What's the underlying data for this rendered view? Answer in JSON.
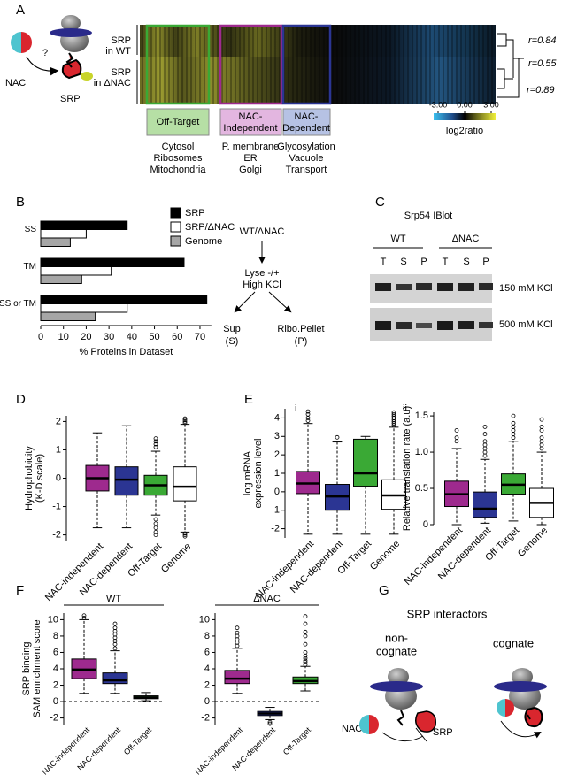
{
  "panels": {
    "A": {
      "label": "A",
      "nac": "NAC",
      "srp": "SRP",
      "question": "?",
      "rows": [
        [
          "SRP",
          "in WT"
        ],
        [
          "SRP",
          "in ΔNAC"
        ]
      ],
      "correlations": [
        "r=0.84",
        "r=0.55",
        "r=0.89"
      ],
      "groups": [
        {
          "title": [
            "Off-Target"
          ],
          "items": [
            "Cytosol",
            "Ribosomes",
            "Mitochondria"
          ]
        },
        {
          "title": [
            "NAC-",
            "Independent"
          ],
          "items": [
            "P. membrane",
            "ER",
            "Golgi"
          ]
        },
        {
          "title": [
            "NAC-",
            "Dependent"
          ],
          "items": [
            "Glycosylation",
            "Vacuole",
            "Transport"
          ]
        }
      ],
      "colorbar": {
        "lim": [
          -3.5,
          3.5
        ],
        "ticks": [
          {
            "value": -3,
            "label": "-3.00"
          },
          {
            "value": 0,
            "label": "0.00"
          },
          {
            "value": 3,
            "label": "3.00"
          }
        ],
        "label": "log2ratio"
      }
    },
    "B": {
      "label": "B"
    },
    "C": {
      "label": "C",
      "start": "WT/ΔNAC",
      "step": [
        "Lyse -/+",
        "High KCl"
      ],
      "sup": [
        "Sup",
        "(S)"
      ],
      "pellet": [
        "Ribo.Pellet",
        "(P)"
      ],
      "blot_title": "Srp54 IBlot",
      "strains": [
        "WT",
        "ΔNAC"
      ],
      "lanes": [
        "T",
        "S",
        "P",
        "T",
        "S",
        "P"
      ],
      "conditions": [
        "150 mM KCl",
        "500 mM KCl"
      ]
    },
    "D": {
      "label": "D"
    },
    "E": {
      "label": "E",
      "sub": [
        "i",
        "ii"
      ]
    },
    "F": {
      "label": "F"
    },
    "G": {
      "label": "G",
      "title": "SRP interactors",
      "left": [
        "non-",
        "cognate"
      ],
      "right": "cognate",
      "nac": "NAC",
      "srp": "SRP"
    }
  },
  "chart_data": [
    {
      "type": "hbar",
      "categories": [
        "SS",
        "TM",
        "SS or TM"
      ],
      "series": [
        {
          "name": "SRP",
          "color": "#000000",
          "values": [
            38,
            63,
            73
          ]
        },
        {
          "name": "SRP/ΔNAC",
          "color": "#ffffff",
          "values": [
            20,
            31,
            38
          ]
        },
        {
          "name": "Genome",
          "color": "#a6a6a6",
          "values": [
            13,
            18,
            24
          ]
        }
      ],
      "xlim": [
        0,
        75
      ],
      "xticks": [
        0,
        10,
        20,
        30,
        40,
        50,
        60,
        70
      ],
      "xlabel": "% Proteins in Dataset",
      "legend": "upper right"
    },
    {
      "type": "box",
      "categories": [
        "NAC-independent",
        "NAC-dependent",
        "Off-Target",
        "Genome"
      ],
      "colors": [
        "#9e2a8e",
        "#2b3593",
        "#3aa935",
        "#ffffff"
      ],
      "boxes": [
        {
          "whisker_low": -1.75,
          "q1": -0.45,
          "median": 0,
          "q3": 0.45,
          "whisker_high": 1.6,
          "outliers": []
        },
        {
          "whisker_low": -1.75,
          "q1": -0.6,
          "median": -0.05,
          "q3": 0.4,
          "whisker_high": 1.85,
          "outliers": []
        },
        {
          "whisker_low": -1.3,
          "q1": -0.6,
          "median": -0.25,
          "q3": 0.1,
          "whisker_high": 0.95,
          "outliers": [
            1.1,
            1.2,
            1.3,
            1.4,
            -1.45,
            -1.6,
            -1.75,
            -1.9,
            -2.0
          ]
        },
        {
          "whisker_low": -1.9,
          "q1": -0.8,
          "median": -0.3,
          "q3": 0.4,
          "whisker_high": 1.9,
          "outliers": [
            1.95,
            2.0,
            2.05,
            2.1,
            -1.95,
            -2.0,
            -2.05
          ]
        }
      ],
      "ylim": [
        -2.2,
        2.2
      ],
      "yticks": [
        -2,
        -1,
        0,
        1,
        2
      ],
      "ylabel": [
        "Hydrophobicity",
        "(K-D scale)"
      ]
    },
    {
      "type": "box",
      "categories": [
        "NAC-independent",
        "NAC-dependent",
        "Off-Target",
        "Genome"
      ],
      "colors": [
        "#9e2a8e",
        "#2b3593",
        "#3aa935",
        "#ffffff"
      ],
      "boxes": [
        {
          "whisker_low": -2.3,
          "q1": -0.1,
          "median": 0.45,
          "q3": 1.1,
          "whisker_high": 3.7,
          "outliers": [
            3.85,
            4.0,
            4.2,
            4.35
          ]
        },
        {
          "whisker_low": -2.3,
          "q1": -1.0,
          "median": -0.25,
          "q3": 0.4,
          "whisker_high": 2.7,
          "outliers": [
            2.95
          ]
        },
        {
          "whisker_low": -2.3,
          "q1": 0.3,
          "median": 1.0,
          "q3": 2.85,
          "whisker_high": 3.0,
          "outliers": []
        },
        {
          "whisker_low": -2.3,
          "q1": -0.95,
          "median": -0.2,
          "q3": 0.65,
          "whisker_high": 3.5,
          "outliers": [
            3.6,
            3.7,
            3.8,
            3.9,
            4.0,
            4.1,
            4.2,
            4.3
          ]
        }
      ],
      "ylim": [
        -2.5,
        4.5
      ],
      "yticks": [
        -2,
        -1,
        0,
        1,
        2,
        3,
        4
      ],
      "ylabel": [
        "log mRNA",
        "expression level"
      ]
    },
    {
      "type": "box",
      "categories": [
        "NAC-independent",
        "NAC-dependent",
        "Off-Target",
        "Genome"
      ],
      "colors": [
        "#9e2a8e",
        "#2b3593",
        "#3aa935",
        "#ffffff"
      ],
      "boxes": [
        {
          "whisker_low": 0,
          "q1": 0.25,
          "median": 0.42,
          "q3": 0.6,
          "whisker_high": 1.05,
          "outliers": [
            1.15,
            1.2,
            1.3
          ]
        },
        {
          "whisker_low": 0.02,
          "q1": 0.1,
          "median": 0.22,
          "q3": 0.45,
          "whisker_high": 0.9,
          "outliers": [
            0.95,
            1.0,
            1.05,
            1.1,
            1.15,
            1.25,
            1.35
          ]
        },
        {
          "whisker_low": 0.05,
          "q1": 0.42,
          "median": 0.55,
          "q3": 0.7,
          "whisker_high": 1.15,
          "outliers": [
            1.2,
            1.25,
            1.3,
            1.35,
            1.4,
            1.5
          ]
        },
        {
          "whisker_low": 0,
          "q1": 0.1,
          "median": 0.3,
          "q3": 0.5,
          "whisker_high": 1.0,
          "outliers": [
            1.05,
            1.1,
            1.15,
            1.2,
            1.3,
            1.35,
            1.45
          ]
        }
      ],
      "ylim": [
        0,
        1.55
      ],
      "yticks": [
        0,
        0.5,
        {
          "value": 1,
          "label": "1.0"
        },
        1.5
      ],
      "ylabel": [
        "Relative translation rate (a.u)"
      ]
    },
    {
      "type": "box",
      "title": "WT",
      "categories": [
        "NAC-independent",
        "NAC-dependent",
        "Off-Target"
      ],
      "colors": [
        "#9e2a8e",
        "#2b3593",
        "#3aa935"
      ],
      "boxes": [
        {
          "whisker_low": 1,
          "q1": 2.8,
          "median": 3.9,
          "q3": 5.2,
          "whisker_high": 10,
          "outliers": [
            10.2,
            10.5
          ]
        },
        {
          "whisker_low": 1,
          "q1": 2.2,
          "median": 2.6,
          "q3": 3.5,
          "whisker_high": 6.2,
          "outliers": [
            6.5,
            7,
            7.4,
            7.8,
            8.2,
            8.6,
            9,
            9.5
          ]
        },
        {
          "whisker_low": 0.1,
          "q1": 0.35,
          "median": 0.5,
          "q3": 0.7,
          "whisker_high": 1.1,
          "outliers": []
        }
      ],
      "ylim": [
        -2.8,
        10.8
      ],
      "yticks": [
        -2,
        0,
        2,
        4,
        6,
        8,
        10
      ],
      "ylabel": [
        "SRP binding",
        "SAM enrichment score"
      ],
      "reference_line": 0
    },
    {
      "type": "box",
      "title": "ΔNAC",
      "categories": [
        "NAC-independent",
        "NAC-dependent",
        "Off-Target"
      ],
      "colors": [
        "#9e2a8e",
        "#2b3593",
        "#3aa935"
      ],
      "boxes": [
        {
          "whisker_low": 1,
          "q1": 2.2,
          "median": 2.8,
          "q3": 3.8,
          "whisker_high": 6.5,
          "outliers": [
            6.8,
            7.2,
            7.6,
            8,
            8.4,
            9
          ]
        },
        {
          "whisker_low": -2.2,
          "q1": -1.7,
          "median": -1.45,
          "q3": -1.2,
          "whisker_high": -0.7,
          "outliers": [
            -2.5,
            -2.7
          ]
        },
        {
          "whisker_low": 1.3,
          "q1": 2.2,
          "median": 2.5,
          "q3": 3,
          "whisker_high": 4.3,
          "outliers": [
            4.5,
            4.8,
            5,
            5.3,
            5.6,
            6,
            7,
            8,
            8.5,
            9.5,
            10.4
          ]
        }
      ],
      "ylim": [
        -2.8,
        10.8
      ],
      "yticks": [
        -2,
        0,
        2,
        4,
        6,
        8,
        10
      ],
      "reference_line": 0
    }
  ]
}
